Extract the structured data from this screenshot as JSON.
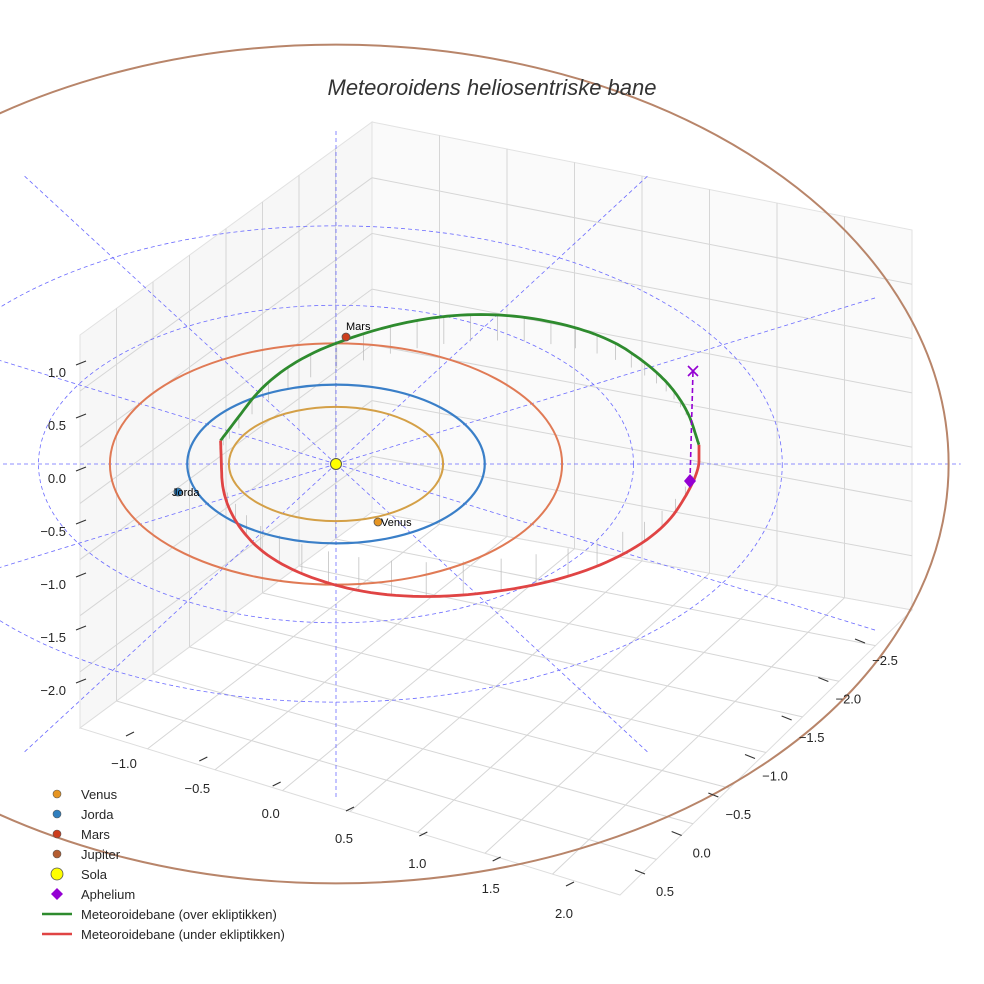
{
  "chart_data": {
    "type": "line",
    "projection": "3d",
    "title": "Meteoroidens heliosentriske bane",
    "axes": {
      "x": {
        "ticks": [
          "−1.0",
          "−0.5",
          "0.0",
          "0.5",
          "1.0",
          "1.5",
          "2.0"
        ]
      },
      "y": {
        "ticks": [
          "−2.5",
          "−2.0",
          "−1.5",
          "−1.0",
          "−0.5",
          "0.0",
          "0.5"
        ]
      },
      "z": {
        "ticks": [
          "1.0",
          "0.5",
          "0.0",
          "−0.5",
          "−1.0",
          "−1.5",
          "−2.0"
        ]
      }
    },
    "grid": true,
    "legend_position": "bottom-left",
    "reference_grid": {
      "style": "dashed",
      "color": "#6b6bff",
      "radii_au": [
        1,
        2,
        3
      ]
    },
    "orbits": [
      {
        "name": "Venus",
        "radius_au": 0.72,
        "color": "#d4a047"
      },
      {
        "name": "Jorda",
        "radius_au": 1.0,
        "color": "#3a7fc8"
      },
      {
        "name": "Mars",
        "radius_au": 1.52,
        "color": "#e07a55"
      },
      {
        "name": "Jupiter",
        "radius_au": 5.2,
        "color": "#b8856a"
      }
    ],
    "series": [
      {
        "name": "Meteoroidebane (over ekliptikken)",
        "color": "#2e8b2e",
        "points": [
          [
            -0.97,
            0.25,
            0.08
          ],
          [
            -0.5,
            1.2,
            0.22
          ],
          [
            0.4,
            1.75,
            0.3
          ],
          [
            1.3,
            2.0,
            0.28
          ],
          [
            2.2,
            1.8,
            0.2
          ],
          [
            2.7,
            1.3,
            0.12
          ],
          [
            2.95,
            0.8,
            0.06
          ],
          [
            3.05,
            0.3,
            0.0
          ]
        ]
      },
      {
        "name": "Meteoroidebane (under ekliptikken)",
        "color": "#e04444",
        "points": [
          [
            3.05,
            0.3,
            0.0
          ],
          [
            3.05,
            -0.1,
            -0.06
          ],
          [
            2.7,
            -0.9,
            -0.2
          ],
          [
            1.8,
            -1.45,
            -0.32
          ],
          [
            0.5,
            -1.6,
            -0.38
          ],
          [
            -0.5,
            -1.2,
            -0.3
          ],
          [
            -0.95,
            -0.5,
            -0.15
          ],
          [
            -0.97,
            0.25,
            0.08
          ]
        ]
      }
    ],
    "markers": [
      {
        "name": "Venus",
        "label": "Venus",
        "color": "#e69522"
      },
      {
        "name": "Jorda",
        "label": "Jorda",
        "color": "#2f7fbf"
      },
      {
        "name": "Mars",
        "label": "Mars",
        "color": "#cc3d1c"
      },
      {
        "name": "Jupiter",
        "label": "",
        "color": "#b35c30"
      },
      {
        "name": "Sola",
        "label": "",
        "color": "#ffff00"
      },
      {
        "name": "Aphelium",
        "label": "",
        "color": "#9400d3"
      }
    ],
    "legend": [
      {
        "label": "Venus",
        "kind": "dot",
        "color": "#e69522"
      },
      {
        "label": "Jorda",
        "kind": "dot",
        "color": "#2f7fbf"
      },
      {
        "label": "Mars",
        "kind": "dot",
        "color": "#cc3d1c"
      },
      {
        "label": "Jupiter",
        "kind": "dot",
        "color": "#b35c30"
      },
      {
        "label": "Sola",
        "kind": "bigdot",
        "color": "#ffff00"
      },
      {
        "label": "Aphelium",
        "kind": "diamond",
        "color": "#9400d3"
      },
      {
        "label": "Meteoroidebane (over ekliptikken)",
        "kind": "line",
        "color": "#2e8b2e"
      },
      {
        "label": "Meteoroidebane (under ekliptikken)",
        "kind": "line",
        "color": "#e04444"
      }
    ]
  }
}
